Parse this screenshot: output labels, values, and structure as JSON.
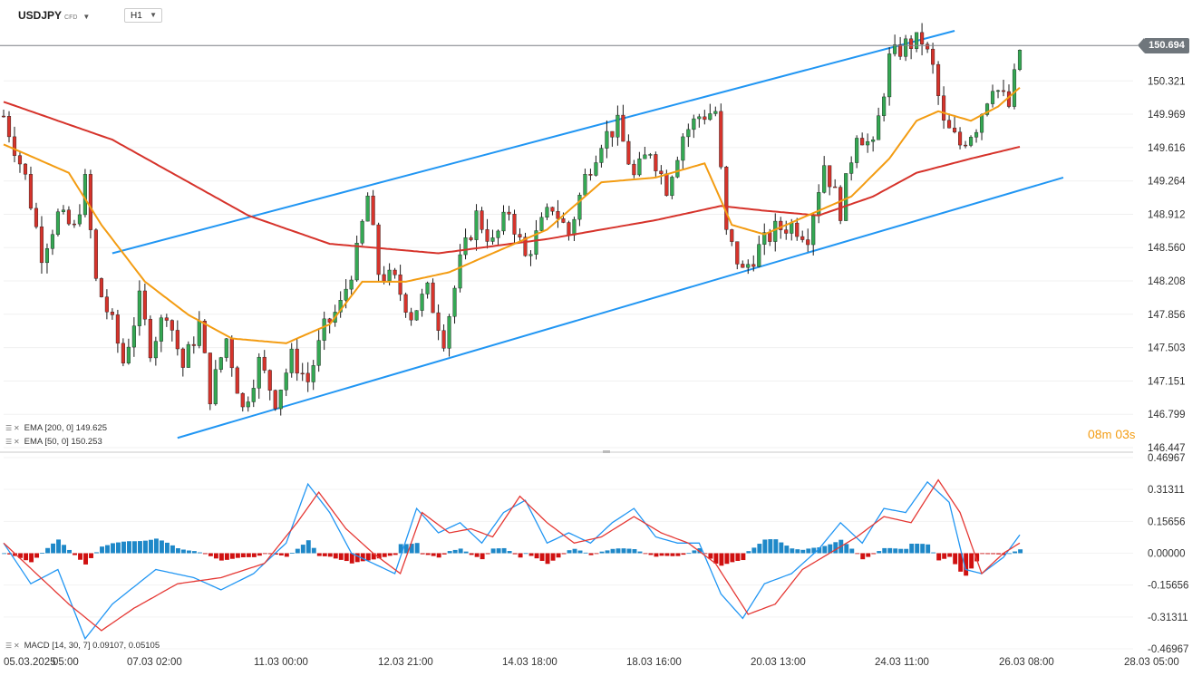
{
  "toolbar": {
    "symbol": "USDJPY",
    "symbol_tag": "CFD",
    "timeframe": "H1"
  },
  "current_price": "150.694",
  "countdown": {
    "minutes": "08",
    "min_unit": "m",
    "seconds": "03",
    "sec_unit": "s"
  },
  "indicators": {
    "ema200": "EMA [200, 0] 149.625",
    "ema50": "EMA [50, 0] 150.253",
    "macd": "MACD [14, 30, 7] 0.09107, 0.05105"
  },
  "colors": {
    "bull": "#34a853",
    "bear": "#d6332b",
    "ema50": "#f39c12",
    "ema200": "#d6332b",
    "channel": "#2196f3",
    "macd_pos": "#1e88c8",
    "macd_neg": "#d01010",
    "macd_line": "#2196f3",
    "signal_line": "#e53935"
  },
  "chart_data": [
    {
      "type": "candlestick",
      "symbol": "USDJPY",
      "timeframe": "H1",
      "price_axis": [
        "150.321",
        "149.969",
        "149.616",
        "149.264",
        "148.912",
        "148.560",
        "148.208",
        "147.856",
        "147.503",
        "147.151",
        "146.799",
        "146.447"
      ],
      "ylim": [
        146.447,
        150.85
      ],
      "time_axis": [
        "05.03.2025",
        "05:00",
        "07.03 02:00",
        "11.03 00:00",
        "12.03 21:00",
        "14.03 18:00",
        "18.03 16:00",
        "20.03 13:00",
        "24.03 11:00",
        "26.03 08:00",
        "28.03 05:00"
      ],
      "last_price": 150.694,
      "price_path": [
        [
          0,
          149.95
        ],
        [
          4,
          149.3
        ],
        [
          7,
          148.5
        ],
        [
          10,
          148.9
        ],
        [
          13,
          148.75
        ],
        [
          15,
          149.25
        ],
        [
          17,
          148.2
        ],
        [
          20,
          147.75
        ],
        [
          22,
          147.35
        ],
        [
          25,
          148.0
        ],
        [
          27,
          147.5
        ],
        [
          30,
          147.9
        ],
        [
          33,
          147.3
        ],
        [
          36,
          147.75
        ],
        [
          38,
          147.0
        ],
        [
          41,
          147.6
        ],
        [
          44,
          146.85
        ],
        [
          47,
          147.35
        ],
        [
          50,
          146.95
        ],
        [
          53,
          147.4
        ],
        [
          56,
          147.15
        ],
        [
          59,
          147.7
        ],
        [
          62,
          147.95
        ],
        [
          65,
          148.5
        ],
        [
          67,
          149.1
        ],
        [
          69,
          148.3
        ],
        [
          72,
          148.2
        ],
        [
          75,
          147.85
        ],
        [
          78,
          148.1
        ],
        [
          81,
          147.6
        ],
        [
          84,
          148.4
        ],
        [
          87,
          148.9
        ],
        [
          90,
          148.6
        ],
        [
          93,
          148.95
        ],
        [
          96,
          148.45
        ],
        [
          99,
          148.8
        ],
        [
          101,
          149.0
        ],
        [
          104,
          148.7
        ],
        [
          107,
          149.3
        ],
        [
          110,
          149.7
        ],
        [
          113,
          149.85
        ],
        [
          116,
          149.3
        ],
        [
          119,
          149.6
        ],
        [
          122,
          149.2
        ],
        [
          125,
          149.75
        ],
        [
          128,
          149.95
        ],
        [
          131,
          150.0
        ],
        [
          133,
          148.7
        ],
        [
          136,
          148.3
        ],
        [
          139,
          148.55
        ],
        [
          142,
          148.75
        ],
        [
          145,
          148.8
        ],
        [
          148,
          148.7
        ],
        [
          151,
          149.45
        ],
        [
          154,
          148.95
        ],
        [
          157,
          149.8
        ],
        [
          160,
          149.6
        ],
        [
          163,
          150.55
        ],
        [
          166,
          150.7
        ],
        [
          169,
          150.75
        ],
        [
          171,
          150.45
        ],
        [
          173,
          149.85
        ],
        [
          176,
          149.65
        ],
        [
          179,
          149.85
        ],
        [
          182,
          150.3
        ],
        [
          185,
          150.05
        ],
        [
          187,
          150.65
        ]
      ],
      "ema50_path": [
        [
          0,
          149.65
        ],
        [
          12,
          149.35
        ],
        [
          18,
          148.8
        ],
        [
          26,
          148.2
        ],
        [
          34,
          147.85
        ],
        [
          42,
          147.6
        ],
        [
          52,
          147.55
        ],
        [
          60,
          147.75
        ],
        [
          66,
          148.2
        ],
        [
          74,
          148.2
        ],
        [
          82,
          148.3
        ],
        [
          90,
          148.5
        ],
        [
          100,
          148.75
        ],
        [
          110,
          149.25
        ],
        [
          120,
          149.3
        ],
        [
          129,
          149.45
        ],
        [
          134,
          148.8
        ],
        [
          140,
          148.7
        ],
        [
          148,
          148.9
        ],
        [
          156,
          149.1
        ],
        [
          163,
          149.5
        ],
        [
          168,
          149.9
        ],
        [
          172,
          150.0
        ],
        [
          178,
          149.9
        ],
        [
          183,
          150.05
        ],
        [
          187,
          150.25
        ]
      ],
      "ema200_path": [
        [
          0,
          150.1
        ],
        [
          20,
          149.7
        ],
        [
          45,
          148.9
        ],
        [
          60,
          148.6
        ],
        [
          80,
          148.5
        ],
        [
          100,
          148.65
        ],
        [
          120,
          148.85
        ],
        [
          132,
          149.0
        ],
        [
          140,
          148.95
        ],
        [
          150,
          148.9
        ],
        [
          160,
          149.1
        ],
        [
          168,
          149.35
        ],
        [
          178,
          149.5
        ],
        [
          187,
          149.625
        ]
      ],
      "channel_upper": [
        [
          20,
          148.5
        ],
        [
          175,
          150.85
        ]
      ],
      "channel_lower": [
        [
          32,
          146.55
        ],
        [
          195,
          149.3
        ]
      ]
    },
    {
      "type": "macd",
      "params": [
        14,
        30,
        7
      ],
      "values": [
        0.09107,
        0.05105
      ],
      "y_axis": [
        "0.46967",
        "0.31311",
        "0.15656",
        "0.00000",
        "-0.15656",
        "-0.31311",
        "-0.46967"
      ],
      "ylim": [
        -0.46967,
        0.46967
      ],
      "macd_path": [
        [
          0,
          0.05
        ],
        [
          5,
          -0.15
        ],
        [
          10,
          -0.08
        ],
        [
          15,
          -0.42
        ],
        [
          20,
          -0.25
        ],
        [
          28,
          -0.08
        ],
        [
          35,
          -0.12
        ],
        [
          40,
          -0.18
        ],
        [
          46,
          -0.1
        ],
        [
          52,
          0.05
        ],
        [
          56,
          0.34
        ],
        [
          60,
          0.2
        ],
        [
          64,
          0.0
        ],
        [
          68,
          -0.05
        ],
        [
          72,
          -0.1
        ],
        [
          76,
          0.22
        ],
        [
          80,
          0.1
        ],
        [
          84,
          0.15
        ],
        [
          88,
          0.05
        ],
        [
          92,
          0.2
        ],
        [
          96,
          0.26
        ],
        [
          100,
          0.05
        ],
        [
          104,
          0.1
        ],
        [
          108,
          0.05
        ],
        [
          112,
          0.15
        ],
        [
          116,
          0.22
        ],
        [
          120,
          0.08
        ],
        [
          124,
          0.05
        ],
        [
          128,
          0.05
        ],
        [
          132,
          -0.2
        ],
        [
          136,
          -0.32
        ],
        [
          140,
          -0.15
        ],
        [
          145,
          -0.1
        ],
        [
          150,
          0.02
        ],
        [
          154,
          0.15
        ],
        [
          158,
          0.05
        ],
        [
          162,
          0.22
        ],
        [
          166,
          0.2
        ],
        [
          170,
          0.35
        ],
        [
          174,
          0.25
        ],
        [
          177,
          -0.08
        ],
        [
          180,
          -0.1
        ],
        [
          184,
          -0.02
        ],
        [
          187,
          0.09
        ]
      ],
      "signal_path": [
        [
          0,
          0.05
        ],
        [
          6,
          -0.1
        ],
        [
          12,
          -0.25
        ],
        [
          18,
          -0.38
        ],
        [
          24,
          -0.27
        ],
        [
          32,
          -0.15
        ],
        [
          40,
          -0.12
        ],
        [
          48,
          -0.05
        ],
        [
          54,
          0.15
        ],
        [
          58,
          0.3
        ],
        [
          63,
          0.12
        ],
        [
          68,
          0.0
        ],
        [
          73,
          -0.1
        ],
        [
          77,
          0.2
        ],
        [
          82,
          0.1
        ],
        [
          86,
          0.12
        ],
        [
          90,
          0.08
        ],
        [
          95,
          0.28
        ],
        [
          100,
          0.15
        ],
        [
          105,
          0.05
        ],
        [
          110,
          0.08
        ],
        [
          116,
          0.18
        ],
        [
          121,
          0.1
        ],
        [
          126,
          0.05
        ],
        [
          131,
          -0.05
        ],
        [
          137,
          -0.3
        ],
        [
          142,
          -0.25
        ],
        [
          147,
          -0.08
        ],
        [
          152,
          0.0
        ],
        [
          157,
          0.08
        ],
        [
          162,
          0.18
        ],
        [
          167,
          0.15
        ],
        [
          172,
          0.36
        ],
        [
          176,
          0.2
        ],
        [
          180,
          -0.1
        ],
        [
          184,
          0.0
        ],
        [
          187,
          0.05
        ]
      ],
      "histogram_sign": [
        [
          0,
          1
        ],
        [
          2,
          -1
        ],
        [
          12,
          -1
        ],
        [
          18,
          1
        ],
        [
          30,
          -1
        ],
        [
          44,
          1
        ],
        [
          46,
          -1
        ],
        [
          52,
          -1
        ],
        [
          62,
          -1
        ],
        [
          72,
          -1
        ],
        [
          76,
          1
        ],
        [
          86,
          -1
        ],
        [
          94,
          1
        ],
        [
          100,
          -1
        ],
        [
          108,
          1
        ],
        [
          112,
          -1
        ],
        [
          116,
          1
        ],
        [
          124,
          -1
        ],
        [
          128,
          1
        ],
        [
          136,
          -1
        ],
        [
          146,
          1
        ],
        [
          152,
          1
        ],
        [
          160,
          -1
        ],
        [
          164,
          1
        ],
        [
          174,
          -1
        ],
        [
          181,
          1
        ],
        [
          187,
          1
        ]
      ]
    }
  ]
}
